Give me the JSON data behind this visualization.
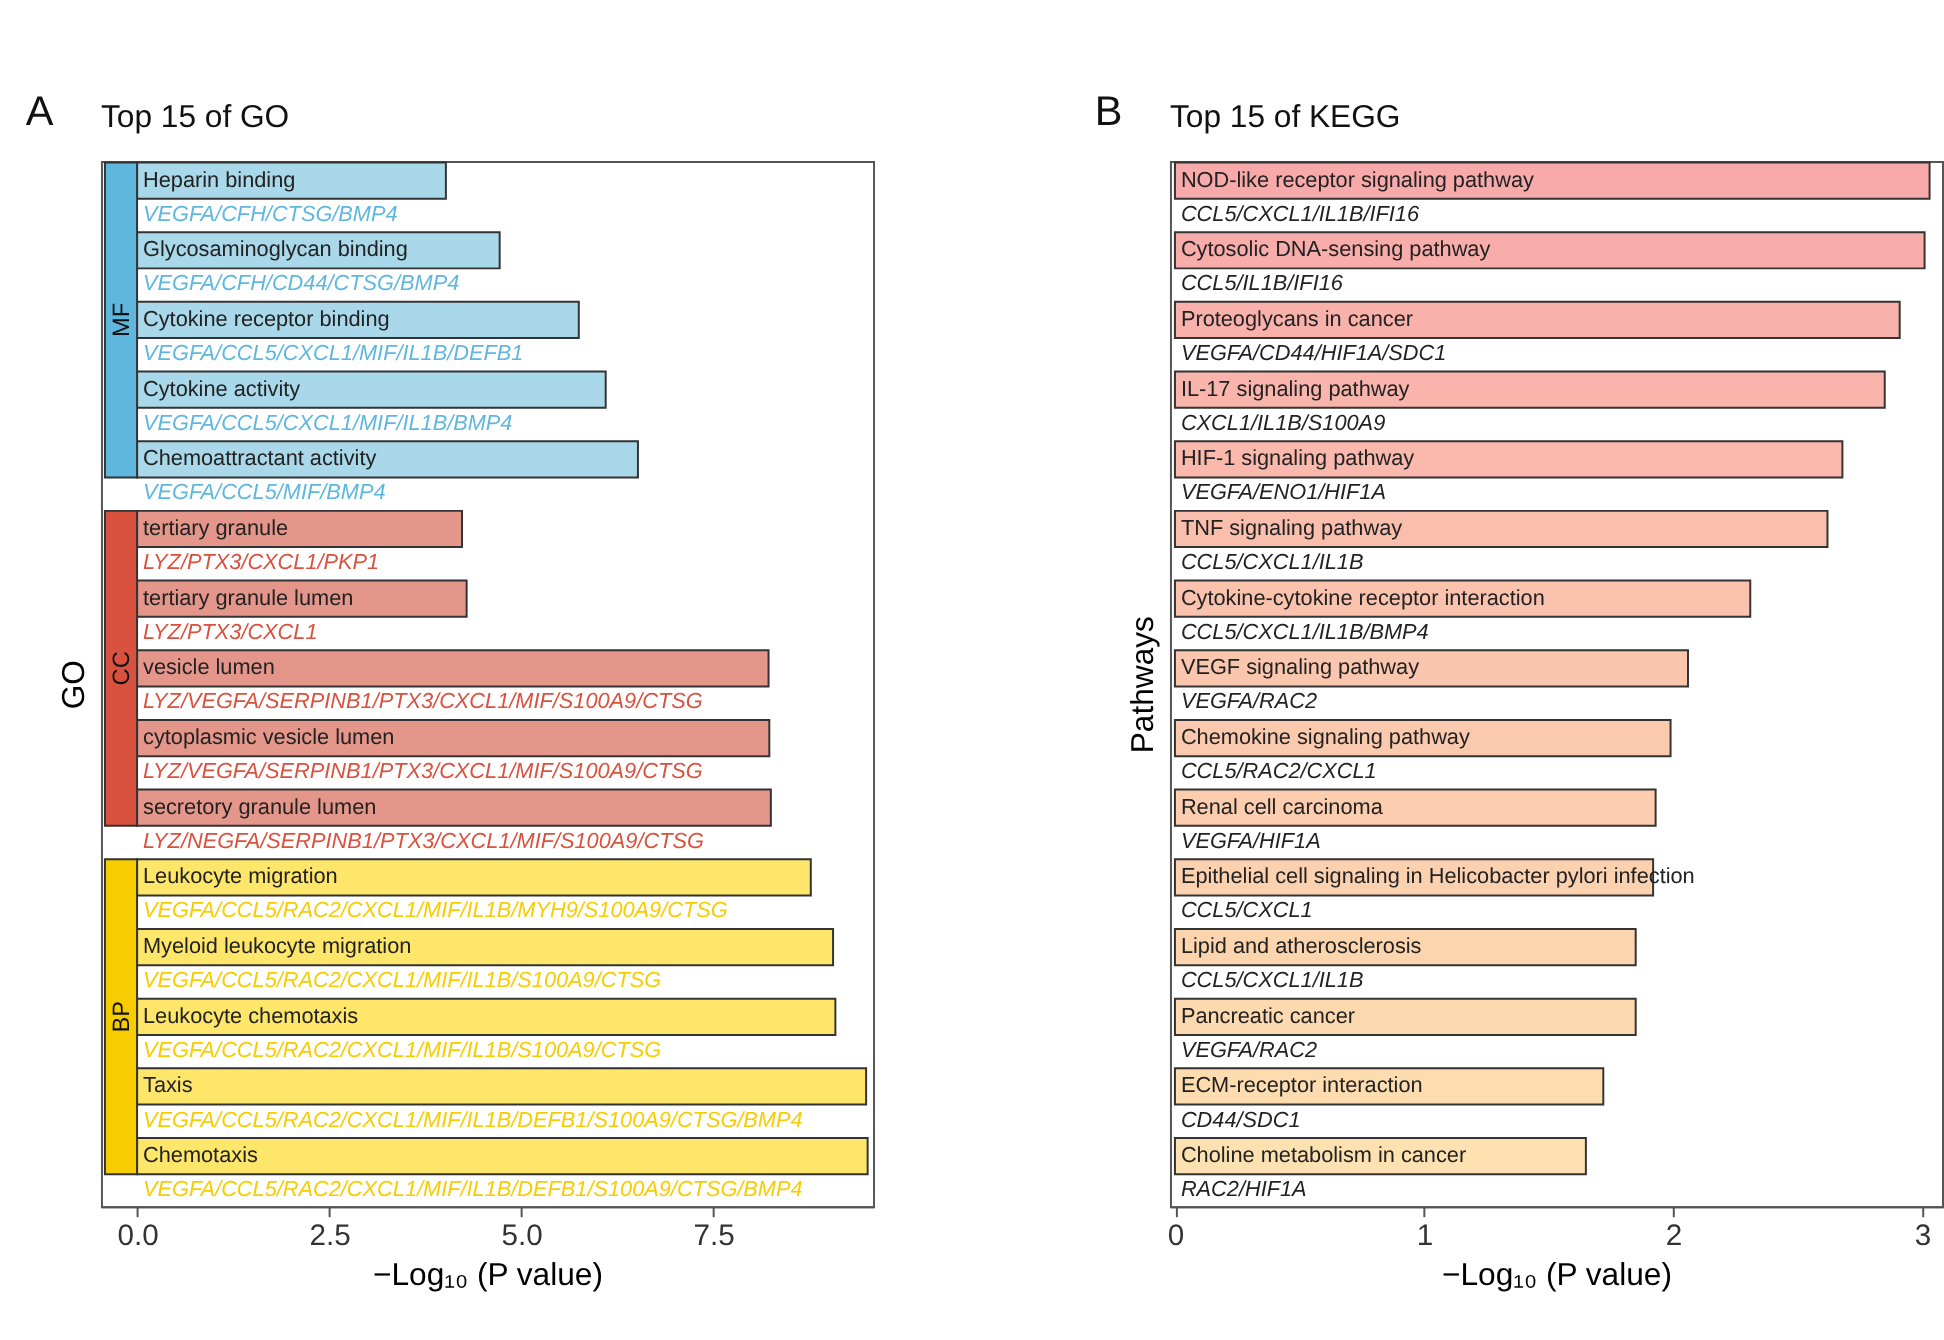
{
  "chart_data": [
    {
      "type": "bar",
      "orientation": "horizontal",
      "title": "Top 15 of GO",
      "xlabel": "−Log₁₀ (P value)",
      "ylabel": "GO",
      "categories": [
        "Heparin binding",
        "Glycosaminoglycan binding",
        "Cytokine receptor binding",
        "Cytokine activity",
        "Chemoattractant activity",
        "tertiary granule",
        "tertiary granule lumen",
        "vesicle lumen",
        "cytoplasmic vesicle lumen",
        "secretory granule lumen",
        "Leukocyte migration",
        "Myeloid leukocyte migration",
        "Leukocyte chemotaxis",
        "Taxis",
        "Chemotaxis"
      ],
      "values": [
        4.02,
        4.72,
        5.75,
        6.1,
        6.52,
        4.23,
        4.29,
        8.22,
        8.23,
        8.25,
        8.77,
        9.06,
        9.09,
        9.49,
        9.51
      ],
      "colors": [
        "#a8d8ea",
        "#a8d8ea",
        "#a8d8ea",
        "#a8d8ea",
        "#a8d8ea",
        "#e5968a",
        "#e5968a",
        "#e5968a",
        "#e5968a",
        "#e5968a",
        "#fde66a",
        "#fde66a",
        "#fde66a",
        "#fde66a",
        "#fde66a"
      ],
      "xlim": [
        -0.47,
        9.58
      ],
      "xticks": [
        {
          "value": 0,
          "label": "0.0"
        },
        {
          "value": 2.5,
          "label": "2.5"
        },
        {
          "value": 5,
          "label": "5.0"
        },
        {
          "value": 7.5,
          "label": "7.5"
        }
      ],
      "bands": [
        {
          "axis": "y",
          "from": "Heparin binding",
          "to": "Chemoattractant activity",
          "label": "MF",
          "color": "#5fb7de"
        },
        {
          "axis": "y",
          "from": "tertiary granule",
          "to": "secretory granule lumen",
          "label": "CC",
          "color": "#d9513f"
        },
        {
          "axis": "y",
          "from": "Leukocyte migration",
          "to": "Chemotaxis",
          "label": "BP",
          "color": "#f7cc00"
        }
      ],
      "annotations": [
        "A",
        "VEGFA/CFH/CTSG/BMP4",
        "VEGFA/CFH/CD44/CTSG/BMP4",
        "VEGFA/CCL5/CXCL1/MIF/IL1B/DEFB1",
        "VEGFA/CCL5/CXCL1/MIF/IL1B/BMP4",
        "VEGFA/CCL5/MIF/BMP4",
        "LYZ/PTX3/CXCL1/PKP1",
        "LYZ/PTX3/CXCL1",
        "LYZ/VEGFA/SERPINB1/PTX3/CXCL1/MIF/S100A9/CTSG",
        "LYZ/VEGFA/SERPINB1/PTX3/CXCL1/MIF/S100A9/CTSG",
        "LYZ/NEGFA/SERPINB1/PTX3/CXCL1/MIF/S100A9/CTSG",
        "VEGFA/CCL5/RAC2/CXCL1/MIF/IL1B/MYH9/S100A9/CTSG",
        "VEGFA/CCL5/RAC2/CXCL1/MIF/IL1B/S100A9/CTSG",
        "VEGFA/CCL5/RAC2/CXCL1/MIF/IL1B/S100A9/CTSG",
        "VEGFA/CCL5/RAC2/CXCL1/MIF/IL1B/DEFB1/S100A9/CTSG/BMP4",
        "VEGFA/CCL5/RAC2/CXCL1/MIF/IL1B/DEFB1/S100A9/CTSG/BMP4"
      ]
    },
    {
      "type": "bar",
      "orientation": "horizontal",
      "title": "Top 15 of KEGG",
      "xlabel": "−Log₁₀ (P value)",
      "ylabel": "Pathways",
      "categories": [
        "NOD-like receptor signaling pathway",
        "Cytosolic DNA-sensing pathway",
        "Proteoglycans in cancer",
        "IL-17 signaling pathway",
        "HIF-1 signaling pathway",
        "TNF signaling pathway",
        "Cytokine-cytokine receptor interaction",
        "VEGF signaling pathway",
        "Chemokine signaling pathway",
        "Renal cell carcinoma",
        "Epithelial cell signaling in Helicobacter pylori infection",
        "Lipid and atherosclerosis",
        "Pancreatic cancer",
        "ECM-receptor interaction",
        "Choline metabolism in cancer"
      ],
      "values": [
        3.03,
        3.01,
        2.91,
        2.85,
        2.68,
        2.62,
        2.31,
        2.06,
        1.99,
        1.93,
        1.92,
        1.85,
        1.85,
        1.72,
        1.65
      ],
      "colors": [
        "#f8a9aa",
        "#f8adab",
        "#f9b1ab",
        "#f9b5ac",
        "#fab9ac",
        "#fabead",
        "#fbc2ad",
        "#fbc6ae",
        "#fbcaae",
        "#fccdae",
        "#fcd1af",
        "#fcd5af",
        "#fdd9b0",
        "#fdddb0",
        "#fde1b1"
      ],
      "xlim": [
        -0.02,
        3.08
      ],
      "xticks": [
        0,
        1,
        2,
        3
      ],
      "annotations": [
        "B",
        "CCL5/CXCL1/IL1B/IFI16",
        "CCL5/IL1B/IFI16",
        "VEGFA/CD44/HIF1A/SDC1",
        "CXCL1/IL1B/S100A9",
        "VEGFA/ENO1/HIF1A",
        "CCL5/CXCL1/IL1B",
        "CCL5/CXCL1/IL1B/BMP4",
        "VEGFA/RAC2",
        "CCL5/RAC2/CXCL1",
        "VEGFA/HIF1A",
        "CCL5/CXCL1",
        "CCL5/CXCL1/IL1B",
        "VEGFA/RAC2",
        "CD44/SDC1",
        "RAC2/HIF1A"
      ]
    }
  ]
}
